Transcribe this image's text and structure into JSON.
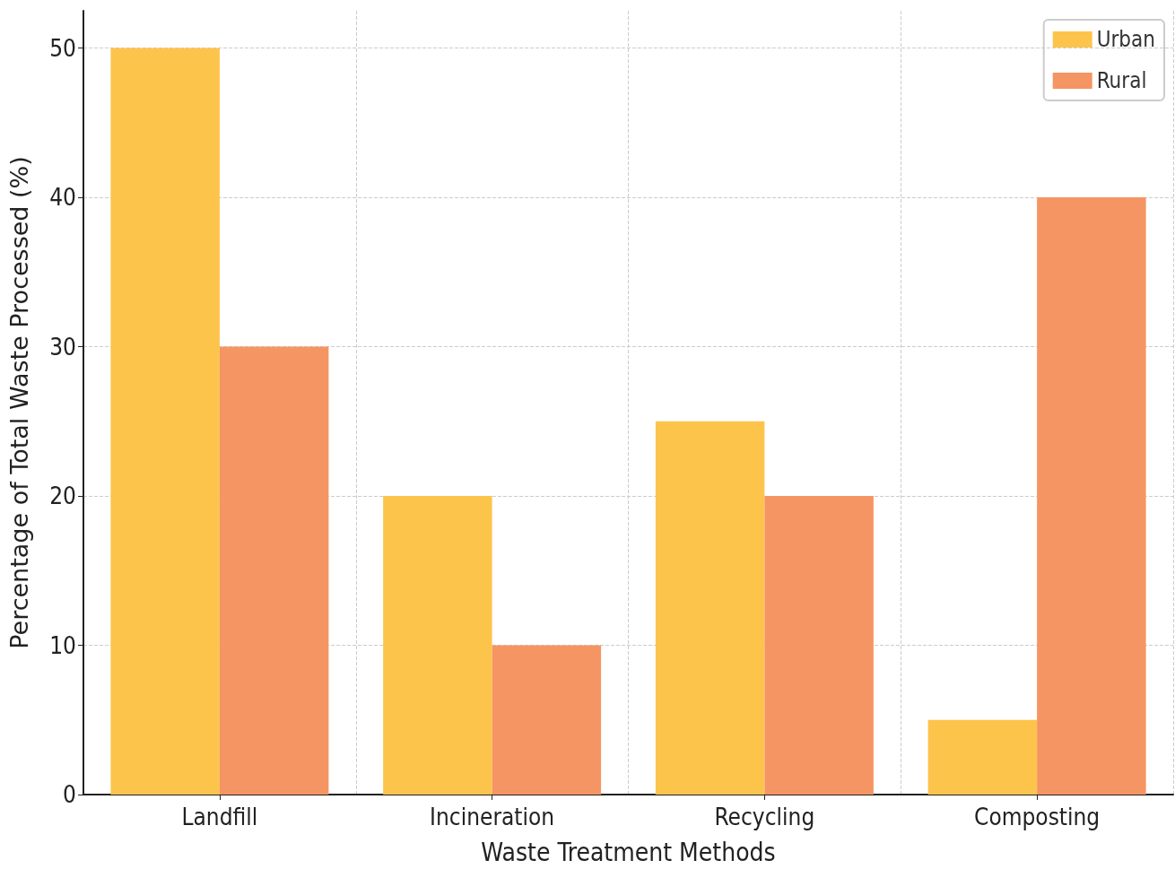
{
  "chart_data": {
    "type": "bar",
    "xlabel": "Waste Treatment Methods",
    "ylabel": "Percentage of Total Waste Processed (%)",
    "categories": [
      "Landfill",
      "Incineration",
      "Recycling",
      "Composting"
    ],
    "series": [
      {
        "name": "Urban",
        "color": "#fdc44c",
        "values": [
          50,
          20,
          25,
          5
        ]
      },
      {
        "name": "Rural",
        "color": "#f59563",
        "values": [
          30,
          10,
          20,
          40
        ]
      }
    ],
    "ylim": [
      0,
      52.5
    ],
    "yticks": [
      0,
      10,
      20,
      30,
      40,
      50
    ],
    "grid": true,
    "legend": "top right"
  }
}
